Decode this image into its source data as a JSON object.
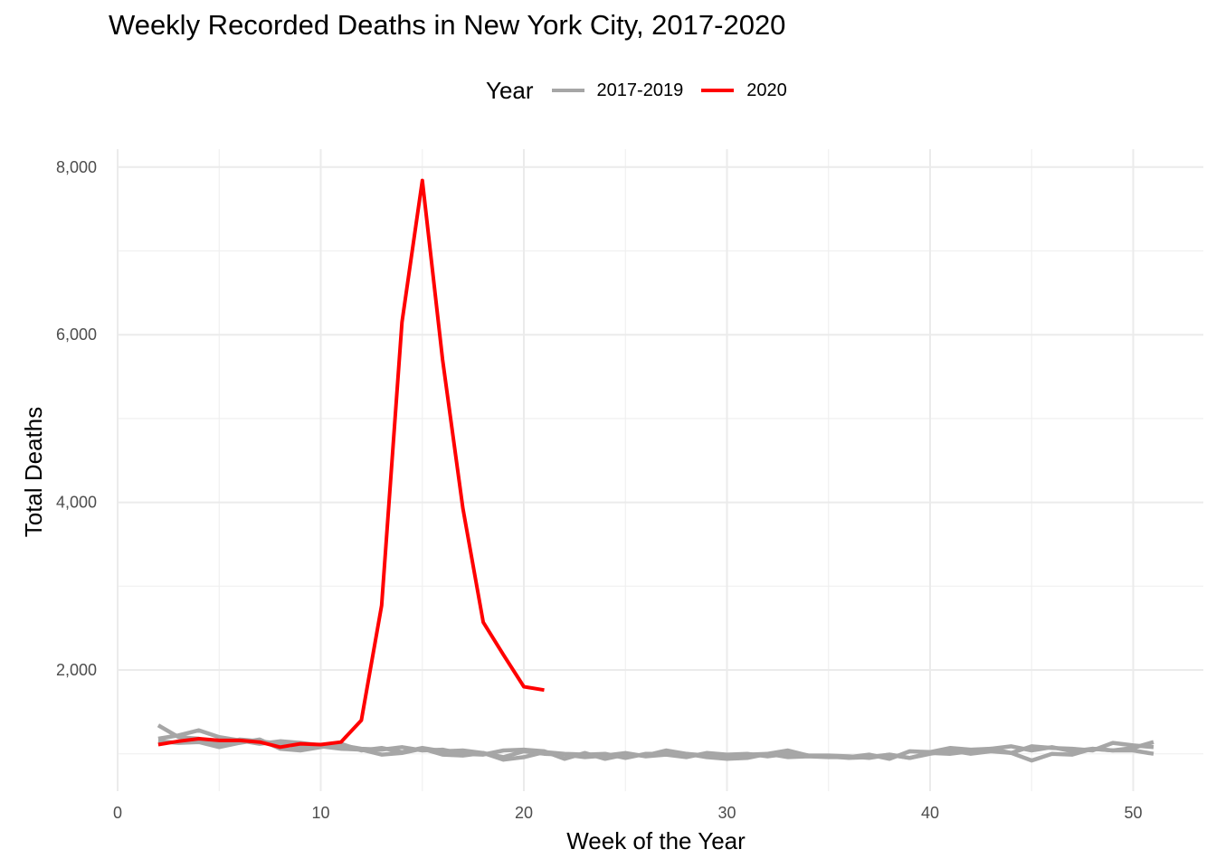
{
  "chart_data": {
    "type": "line",
    "title": "Weekly Recorded Deaths in New York City, 2017-2020",
    "xlabel": "Week of the Year",
    "ylabel": "Total Deaths",
    "xlim": [
      0,
      53
    ],
    "ylim": [
      600,
      8500
    ],
    "x_ticks": [
      0,
      10,
      20,
      30,
      40,
      50
    ],
    "x_tick_labels": [
      "0",
      "10",
      "20",
      "30",
      "40",
      "50"
    ],
    "y_ticks": [
      2000,
      4000,
      6000,
      8000
    ],
    "y_tick_labels": [
      "2,000",
      "4,000",
      "6,000",
      "8,000"
    ],
    "grid": true,
    "legend": {
      "title": "Year",
      "placement": "top",
      "entries": [
        {
          "label": "2017-2019",
          "color": "#a6a6a6"
        },
        {
          "label": "2020",
          "color": "#ff0000"
        }
      ]
    },
    "series": [
      {
        "group": "2017-2019",
        "color": "#a6a6a6",
        "x": [
          2,
          3,
          4,
          5,
          6,
          7,
          8,
          9,
          10,
          11,
          12,
          13,
          14,
          15,
          16,
          17,
          18,
          19,
          20,
          21,
          22,
          23,
          24,
          25,
          26,
          27,
          28,
          29,
          30,
          31,
          32,
          33,
          34,
          35,
          36,
          37,
          38,
          39,
          40,
          41,
          42,
          43,
          44,
          45,
          46,
          47,
          48,
          49,
          50,
          51
        ],
        "values": [
          1340,
          1200,
          1180,
          1120,
          1170,
          1150,
          1120,
          1080,
          1090,
          1060,
          1050,
          990,
          1010,
          1060,
          990,
          980,
          1010,
          960,
          1030,
          1000,
          990,
          960,
          980,
          1010,
          970,
          990,
          960,
          1010,
          990,
          1000,
          970,
          1000,
          980,
          970,
          950,
          960,
          990,
          950,
          1010,
          1000,
          1030,
          1060,
          1090,
          1040,
          1080,
          1030,
          1060,
          1040,
          1070,
          1140
        ]
      },
      {
        "group": "2017-2019",
        "color": "#a6a6a6",
        "x": [
          2,
          3,
          4,
          5,
          6,
          7,
          8,
          9,
          10,
          11,
          12,
          13,
          14,
          15,
          16,
          17,
          18,
          19,
          20,
          21,
          22,
          23,
          24,
          25,
          26,
          27,
          28,
          29,
          30,
          31,
          32,
          33,
          34,
          35,
          36,
          37,
          38,
          39,
          40,
          41,
          42,
          43,
          44,
          45,
          46,
          47,
          48,
          49,
          50,
          51
        ],
        "values": [
          1180,
          1220,
          1280,
          1200,
          1160,
          1120,
          1150,
          1130,
          1100,
          1100,
          1060,
          1050,
          1080,
          1040,
          1050,
          1000,
          990,
          1040,
          1050,
          1030,
          940,
          1010,
          940,
          990,
          980,
          1040,
          1000,
          980,
          970,
          990,
          1000,
          960,
          970,
          960,
          960,
          990,
          940,
          1030,
          1020,
          1070,
          1050,
          1060,
          1010,
          1090,
          1070,
          1060,
          1040,
          1130,
          1100,
          1080
        ]
      },
      {
        "group": "2017-2019",
        "color": "#a6a6a6",
        "x": [
          2,
          3,
          4,
          5,
          6,
          7,
          8,
          9,
          10,
          11,
          12,
          13,
          14,
          15,
          16,
          17,
          18,
          19,
          20,
          21,
          22,
          23,
          24,
          25,
          26,
          27,
          28,
          29,
          30,
          31,
          32,
          33,
          34,
          35,
          36,
          37,
          38,
          39,
          40,
          41,
          42,
          43,
          44,
          45,
          46,
          47,
          48,
          49,
          50,
          51
        ],
        "values": [
          1150,
          1130,
          1140,
          1080,
          1130,
          1170,
          1060,
          1040,
          1080,
          1120,
          1040,
          1070,
          1020,
          1070,
          1030,
          1040,
          1010,
          930,
          960,
          1020,
          1000,
          990,
          1000,
          950,
          1000,
          1000,
          1000,
          960,
          940,
          950,
          1000,
          1040,
          980,
          980,
          970,
          950,
          990,
          950,
          1000,
          1040,
          1000,
          1030,
          1010,
          920,
          1000,
          990,
          1060,
          1040,
          1040,
          1000
        ]
      },
      {
        "group": "2020",
        "color": "#ff0000",
        "x": [
          2,
          3,
          4,
          5,
          6,
          7,
          8,
          9,
          10,
          11,
          12,
          13,
          14,
          15,
          16,
          17,
          18,
          19,
          20,
          21
        ],
        "values": [
          1110,
          1150,
          1180,
          1160,
          1160,
          1140,
          1080,
          1120,
          1110,
          1140,
          1400,
          2770,
          6150,
          7840,
          5700,
          3930,
          2570,
          2180,
          1800,
          1760
        ]
      }
    ]
  }
}
